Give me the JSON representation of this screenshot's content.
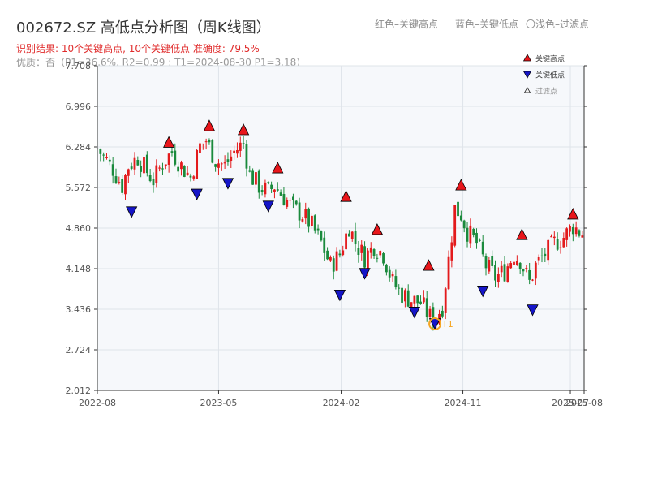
{
  "header": {
    "title": "002672.SZ 高低点分析图（周K线图）",
    "result_line": "识别结果: 10个关键高点, 10个关键低点   准确度: 79.5%",
    "quality_line": "优质：否（P1=36.6%, R2=0.99 ; T1=2024-08-30 P1=3.18）"
  },
  "top_legend": {
    "red": "红色–关键高点",
    "blue": "蓝色–关键低点",
    "light": "〇浅色–过滤点"
  },
  "colors": {
    "up": "#e31a1c",
    "down": "#1a8a3c",
    "high_marker": "#e8161b",
    "low_marker": "#1515c8",
    "t1_ring": "#f5a623",
    "plot_bg": "#f6f8fb",
    "grid": "#dfe4ea"
  },
  "chart_data": {
    "type": "candlestick",
    "title": "002672.SZ 高低点分析图（周K线图）",
    "ylim": [
      2.012,
      7.708
    ],
    "y_ticks": [
      "2.012",
      "2.724",
      "3.436",
      "4.148",
      "4.860",
      "5.572",
      "6.284",
      "6.996",
      "7.708"
    ],
    "x_ticks": [
      "2022-08",
      "2023-05",
      "2024-02",
      "2024-11",
      "2025-07",
      "2025-08"
    ],
    "x_tick_dates": [
      "2022-08-01",
      "2023-05-01",
      "2024-02-01",
      "2024-11-01",
      "2025-07-01",
      "2025-08-01"
    ],
    "x_start": "2022-08-01",
    "x_end": "2025-08-01",
    "grid": true,
    "legend": {
      "placement": "top-right",
      "entries": [
        {
          "label": "关键高点",
          "icon": "triangle-up-red"
        },
        {
          "label": "关键低点",
          "icon": "triangle-down-blue"
        },
        {
          "label": "过滤点",
          "icon": "triangle-up-light"
        }
      ]
    },
    "close_path": [
      [
        "2022-08-01",
        6.25
      ],
      [
        "2022-09-05",
        5.9
      ],
      [
        "2022-09-26",
        5.6
      ],
      [
        "2022-10-10",
        5.95
      ],
      [
        "2022-10-31",
        6.1
      ],
      [
        "2022-11-21",
        5.85
      ],
      [
        "2022-12-05",
        5.7
      ],
      [
        "2022-12-26",
        6.0
      ],
      [
        "2023-01-16",
        6.2
      ],
      [
        "2023-02-06",
        5.95
      ],
      [
        "2023-02-27",
        5.75
      ],
      [
        "2023-03-20",
        6.3
      ],
      [
        "2023-04-03",
        6.4
      ],
      [
        "2023-04-24",
        6.05
      ],
      [
        "2023-05-15",
        5.95
      ],
      [
        "2023-06-05",
        6.2
      ],
      [
        "2023-06-26",
        6.35
      ],
      [
        "2023-07-10",
        5.8
      ],
      [
        "2023-07-31",
        5.6
      ],
      [
        "2023-08-21",
        5.5
      ],
      [
        "2023-09-04",
        5.6
      ],
      [
        "2023-09-25",
        5.4
      ],
      [
        "2023-10-16",
        5.2
      ],
      [
        "2023-11-06",
        5.1
      ],
      [
        "2023-11-27",
        4.9
      ],
      [
        "2023-12-18",
        4.6
      ],
      [
        "2024-01-08",
        4.2
      ],
      [
        "2024-01-29",
        4.4
      ],
      [
        "2024-02-19",
        4.9
      ],
      [
        "2024-03-04",
        4.6
      ],
      [
        "2024-03-25",
        4.35
      ],
      [
        "2024-04-15",
        4.55
      ],
      [
        "2024-05-06",
        4.4
      ],
      [
        "2024-05-27",
        3.9
      ],
      [
        "2024-06-17",
        3.7
      ],
      [
        "2024-07-08",
        3.6
      ],
      [
        "2024-07-29",
        3.55
      ],
      [
        "2024-08-19",
        3.3
      ],
      [
        "2024-08-30",
        3.25
      ],
      [
        "2024-09-16",
        3.5
      ],
      [
        "2024-09-30",
        4.3
      ],
      [
        "2024-10-14",
        5.2
      ],
      [
        "2024-10-28",
        5.1
      ],
      [
        "2024-11-11",
        4.8
      ],
      [
        "2024-12-02",
        4.6
      ],
      [
        "2024-12-23",
        4.2
      ],
      [
        "2025-01-13",
        4.0
      ],
      [
        "2025-02-03",
        4.1
      ],
      [
        "2025-02-24",
        4.4
      ],
      [
        "2025-03-10",
        4.3
      ],
      [
        "2025-03-31",
        3.9
      ],
      [
        "2025-04-14",
        4.2
      ],
      [
        "2025-05-05",
        4.4
      ],
      [
        "2025-05-26",
        4.6
      ],
      [
        "2025-06-16",
        4.7
      ],
      [
        "2025-07-07",
        4.9
      ],
      [
        "2025-07-21",
        4.8
      ],
      [
        "2025-08-01",
        4.75
      ]
    ],
    "key_highs": [
      {
        "date": "2023-01-09",
        "value": 6.37
      },
      {
        "date": "2023-04-10",
        "value": 6.66
      },
      {
        "date": "2023-06-26",
        "value": 6.59
      },
      {
        "date": "2023-09-11",
        "value": 5.92
      },
      {
        "date": "2024-02-12",
        "value": 5.42
      },
      {
        "date": "2024-04-22",
        "value": 4.84
      },
      {
        "date": "2024-08-16",
        "value": 4.21
      },
      {
        "date": "2024-10-28",
        "value": 5.62
      },
      {
        "date": "2025-03-14",
        "value": 4.75
      },
      {
        "date": "2025-07-07",
        "value": 5.11
      }
    ],
    "key_lows": [
      {
        "date": "2022-10-17",
        "value": 5.14
      },
      {
        "date": "2023-03-13",
        "value": 5.45
      },
      {
        "date": "2023-05-22",
        "value": 5.64
      },
      {
        "date": "2023-08-21",
        "value": 5.24
      },
      {
        "date": "2024-01-29",
        "value": 3.68
      },
      {
        "date": "2024-03-25",
        "value": 4.06
      },
      {
        "date": "2024-07-15",
        "value": 3.38
      },
      {
        "date": "2024-08-30",
        "value": 3.18
      },
      {
        "date": "2024-12-16",
        "value": 3.75
      },
      {
        "date": "2025-04-07",
        "value": 3.42
      }
    ],
    "t1": {
      "date": "2024-08-30",
      "value": 3.18,
      "label": "T1"
    }
  }
}
